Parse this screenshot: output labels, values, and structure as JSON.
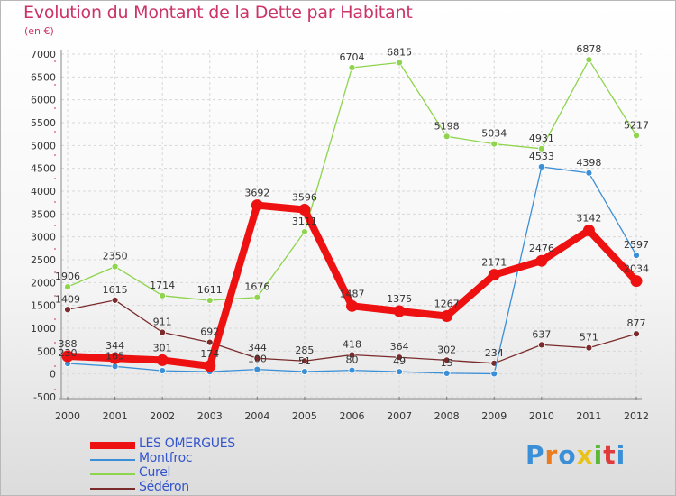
{
  "title": "Evolution du Montant de la Dette par Habitant",
  "subtitle": "(en €)",
  "logo": {
    "text": "Proxiti",
    "colors": [
      "#3a8fd6",
      "#e87c1e",
      "#3a8fd6",
      "#e8c31e",
      "#5cb83a",
      "#e03a3a",
      "#3a8fd6"
    ]
  },
  "chart_data": {
    "type": "line",
    "x": [
      "2000",
      "2001",
      "2002",
      "2003",
      "2004",
      "2005",
      "2006",
      "2007",
      "2008",
      "2009",
      "2010",
      "2011",
      "2012"
    ],
    "ylim": [
      -500,
      7000
    ],
    "yticks": [
      "-500",
      "0",
      "500",
      "1000",
      "1500",
      "2000",
      "2500",
      "3000",
      "3500",
      "4000",
      "4500",
      "5000",
      "5500",
      "6000",
      "6500",
      "7000"
    ],
    "grid": true,
    "legend_position": "bottom-left",
    "series": [
      {
        "name": "Sédéron",
        "color": "#7a2b2b",
        "values": [
          1409,
          1615,
          911,
          692,
          344,
          285,
          418,
          364,
          302,
          234,
          637,
          571,
          877
        ],
        "labels": [
          "1409",
          "1615",
          "911",
          "692",
          "344",
          "285",
          "418",
          "364",
          "302",
          "234",
          "637",
          "571",
          "877"
        ]
      },
      {
        "name": "Curel",
        "color": "#8ed44d",
        "values": [
          1906,
          2350,
          1714,
          1611,
          1676,
          3111,
          6704,
          6815,
          5198,
          5034,
          4931,
          6878,
          5217
        ],
        "labels": [
          "1906",
          "2350",
          "1714",
          "1611",
          "1676",
          "3111",
          "6704",
          "6815",
          "5198",
          "5034",
          "4931",
          "6878",
          "5217"
        ]
      },
      {
        "name": "Montfroc",
        "color": "#3a8fd6",
        "values": [
          230,
          165,
          70,
          50,
          100,
          51,
          80,
          49,
          15,
          5,
          4533,
          4398,
          2597
        ],
        "labels": [
          "230",
          "165",
          "",
          "",
          "100",
          "51",
          "80",
          "49",
          "15",
          "",
          "4533",
          "4398",
          "2597"
        ]
      },
      {
        "name": "LES OMERGUES",
        "color": "#ee1111",
        "values": [
          388,
          344,
          301,
          174,
          3692,
          3596,
          1487,
          1375,
          1267,
          2171,
          2476,
          3142,
          2034
        ],
        "labels": [
          "388",
          "344",
          "301",
          "174",
          "3692",
          "3596",
          "1487",
          "1375",
          "1267",
          "2171",
          "2476",
          "3142",
          "2034"
        ]
      }
    ],
    "legend": [
      "LES OMERGUES",
      "Montfroc",
      "Curel",
      "Sédéron"
    ]
  },
  "legend_items": [
    {
      "name": "LES OMERGUES",
      "color": "#ee1111",
      "label_color": "#3355cc",
      "width": 8
    },
    {
      "name": "Montfroc",
      "color": "#3a8fd6",
      "label_color": "#3355cc",
      "width": 2
    },
    {
      "name": "Curel",
      "color": "#8ed44d",
      "label_color": "#3355cc",
      "width": 2
    },
    {
      "name": "Sédéron",
      "color": "#7a2b2b",
      "label_color": "#3355cc",
      "width": 2
    }
  ]
}
